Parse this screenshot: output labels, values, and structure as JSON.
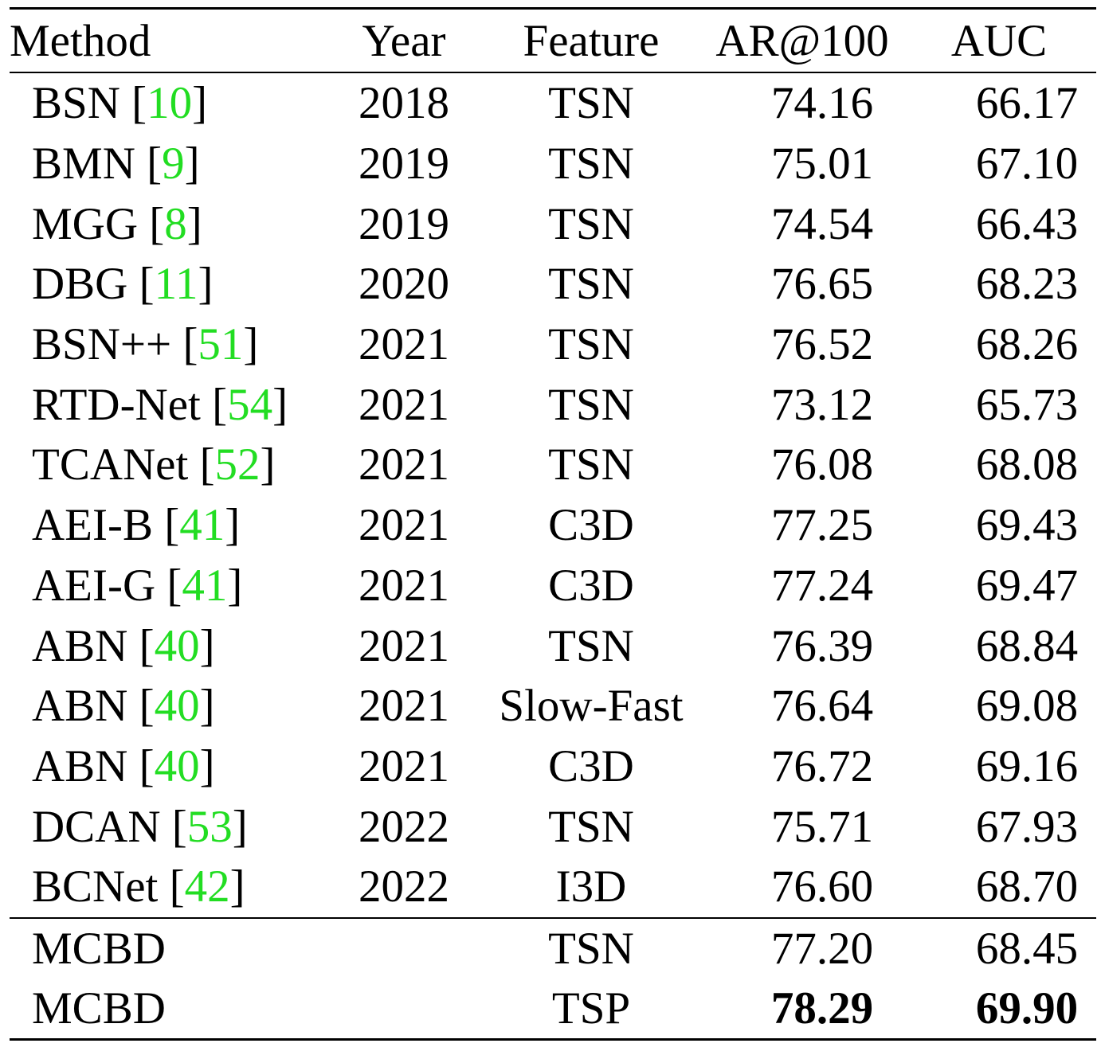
{
  "accent_colors": {
    "citation": "#22dd22",
    "text": "#000000"
  },
  "header": {
    "method": "Method",
    "year": "Year",
    "feature": "Feature",
    "ar100": "AR@100",
    "auc": "AUC"
  },
  "rows": [
    {
      "method": "BSN",
      "cite": "10",
      "year": "2018",
      "feature": "TSN",
      "ar100": "74.16",
      "auc": "66.17"
    },
    {
      "method": "BMN",
      "cite": "9",
      "year": "2019",
      "feature": "TSN",
      "ar100": "75.01",
      "auc": "67.10"
    },
    {
      "method": "MGG",
      "cite": "8",
      "year": "2019",
      "feature": "TSN",
      "ar100": "74.54",
      "auc": "66.43"
    },
    {
      "method": "DBG",
      "cite": "11",
      "year": "2020",
      "feature": "TSN",
      "ar100": "76.65",
      "auc": "68.23"
    },
    {
      "method": "BSN++",
      "cite": "51",
      "year": "2021",
      "feature": "TSN",
      "ar100": "76.52",
      "auc": "68.26"
    },
    {
      "method": "RTD-Net",
      "cite": "54",
      "year": "2021",
      "feature": "TSN",
      "ar100": "73.12",
      "auc": "65.73"
    },
    {
      "method": "TCANet",
      "cite": "52",
      "year": "2021",
      "feature": "TSN",
      "ar100": "76.08",
      "auc": "68.08"
    },
    {
      "method": "AEI-B",
      "cite": "41",
      "year": "2021",
      "feature": "C3D",
      "ar100": "77.25",
      "auc": "69.43"
    },
    {
      "method": "AEI-G",
      "cite": "41",
      "year": "2021",
      "feature": "C3D",
      "ar100": "77.24",
      "auc": "69.47"
    },
    {
      "method": "ABN",
      "cite": "40",
      "year": "2021",
      "feature": "TSN",
      "ar100": "76.39",
      "auc": "68.84"
    },
    {
      "method": "ABN",
      "cite": "40",
      "year": "2021",
      "feature": "Slow-Fast",
      "ar100": "76.64",
      "auc": "69.08"
    },
    {
      "method": "ABN",
      "cite": "40",
      "year": "2021",
      "feature": "C3D",
      "ar100": "76.72",
      "auc": "69.16"
    },
    {
      "method": "DCAN",
      "cite": "53",
      "year": "2022",
      "feature": "TSN",
      "ar100": "75.71",
      "auc": "67.93"
    },
    {
      "method": "BCNet",
      "cite": "42",
      "year": "2022",
      "feature": "I3D",
      "ar100": "76.60",
      "auc": "68.70"
    }
  ],
  "ours": [
    {
      "method": "MCBD",
      "year": "",
      "feature": "TSN",
      "ar100": "77.20",
      "auc": "68.45",
      "best": false
    },
    {
      "method": "MCBD",
      "year": "",
      "feature": "TSP",
      "ar100": "78.29",
      "auc": "69.90",
      "best": true
    }
  ]
}
